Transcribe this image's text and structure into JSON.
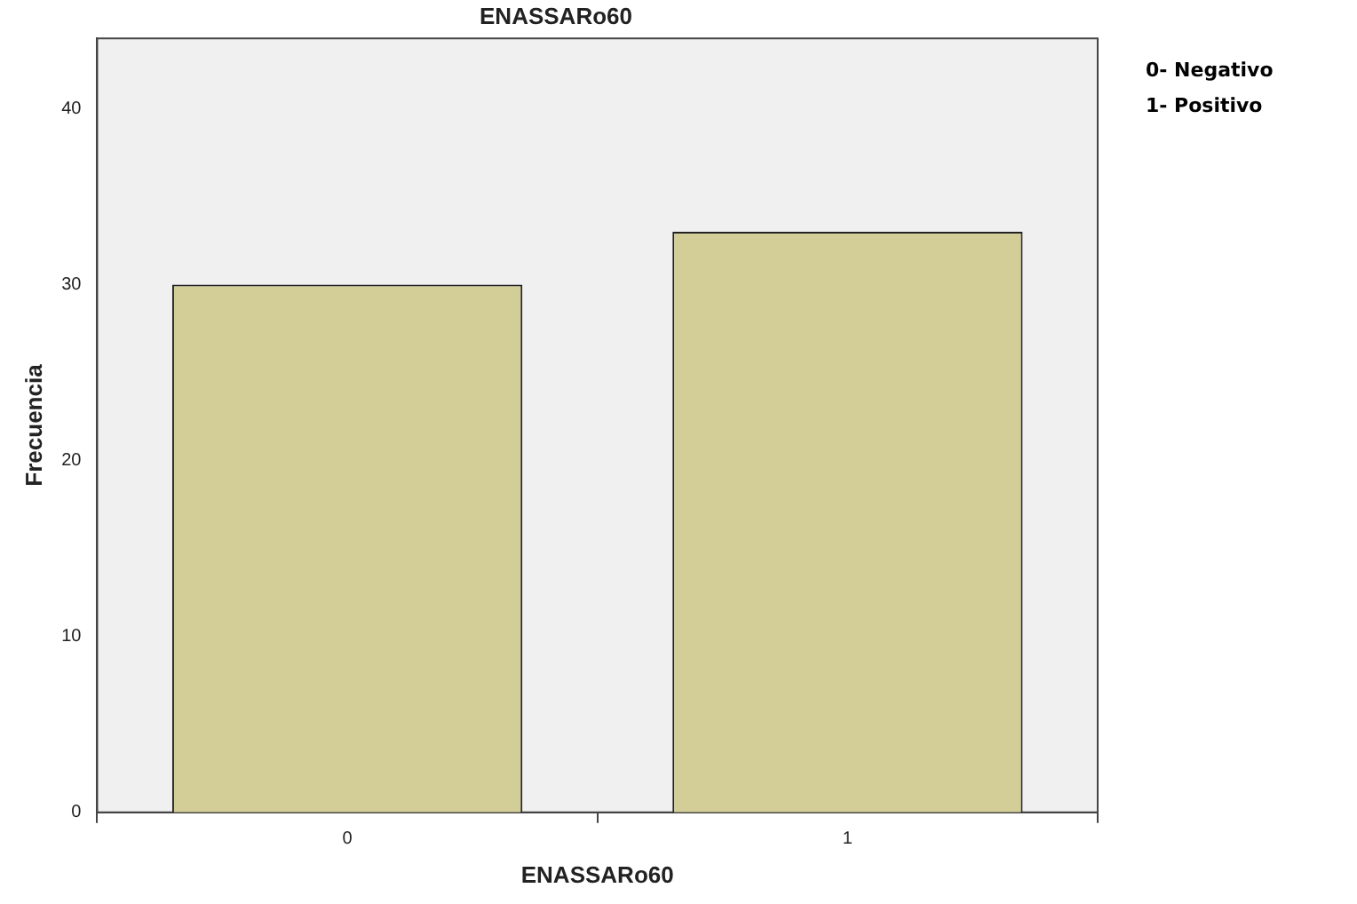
{
  "chart_data": {
    "type": "bar",
    "title": "ENASSARo60",
    "xlabel": "ENASSARo60",
    "ylabel": "Frecuencia",
    "categories": [
      "0",
      "1"
    ],
    "values": [
      30,
      33
    ],
    "color": "#d3ce97",
    "ylim": [
      0,
      44
    ],
    "yticks": [
      0,
      10,
      20,
      30,
      40
    ],
    "grid": false,
    "legend": false,
    "annotations": [
      "0- Negativo",
      "1- Positivo"
    ]
  }
}
